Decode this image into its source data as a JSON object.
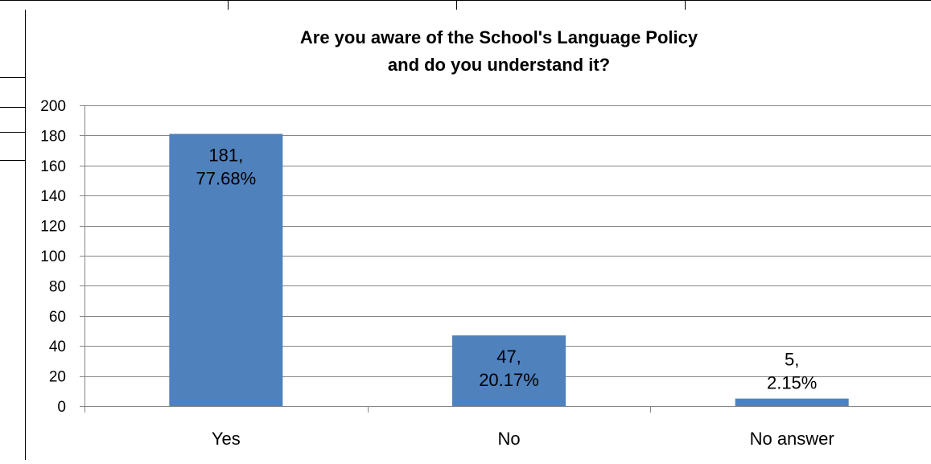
{
  "chart_data": {
    "type": "bar",
    "title": [
      "Are you aware of the School's Language Policy",
      "and do you understand it?"
    ],
    "categories": [
      "Yes",
      "No",
      "No answer"
    ],
    "values": [
      181,
      47,
      5
    ],
    "data_labels": [
      [
        "181,",
        "77.68%"
      ],
      [
        "47,",
        "20.17%"
      ],
      [
        "5,",
        "2.15%"
      ]
    ],
    "xlabel": "",
    "ylabel": "",
    "ylim": [
      0,
      200
    ],
    "yticks": [
      0,
      20,
      40,
      60,
      80,
      100,
      120,
      140,
      160,
      180,
      200
    ],
    "grid": true,
    "legend": "none",
    "colors": {
      "bar": "#4f81bd",
      "grid": "#868686",
      "axis": "#868686",
      "label_inside": "#000000"
    }
  }
}
